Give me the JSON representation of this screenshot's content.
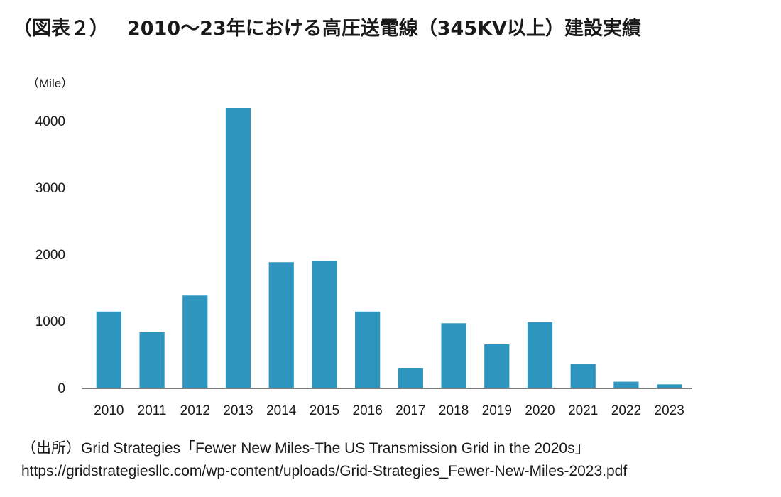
{
  "title": {
    "prefix": "（図表２）",
    "main": "2010〜23年における高圧送電線（345KV以上）建設実績"
  },
  "colors": {
    "bar": "#2e95bf",
    "axis": "#555555",
    "text": "#1a1a1a"
  },
  "chart_data": {
    "type": "bar",
    "title": "2010〜23年における高圧送電線（345KV以上）建設実績",
    "ylabel": "（Mile）",
    "xlabel": "",
    "categories": [
      "2010",
      "2011",
      "2012",
      "2013",
      "2014",
      "2015",
      "2016",
      "2017",
      "2018",
      "2019",
      "2020",
      "2021",
      "2022",
      "2023"
    ],
    "values": [
      1150,
      840,
      1390,
      4200,
      1890,
      1910,
      1150,
      300,
      975,
      660,
      990,
      370,
      100,
      60
    ],
    "ylim": [
      0,
      4200
    ],
    "yticks": [
      0,
      1000,
      2000,
      3000,
      4000
    ],
    "grid": false,
    "legend": "none"
  },
  "source": {
    "line1": "（出所）Grid Strategies「Fewer New Miles-The US Transmission Grid in the 2020s」",
    "line2": "https://gridstrategiesllc.com/wp-content/uploads/Grid-Strategies_Fewer-New-Miles-2023.pdf"
  }
}
